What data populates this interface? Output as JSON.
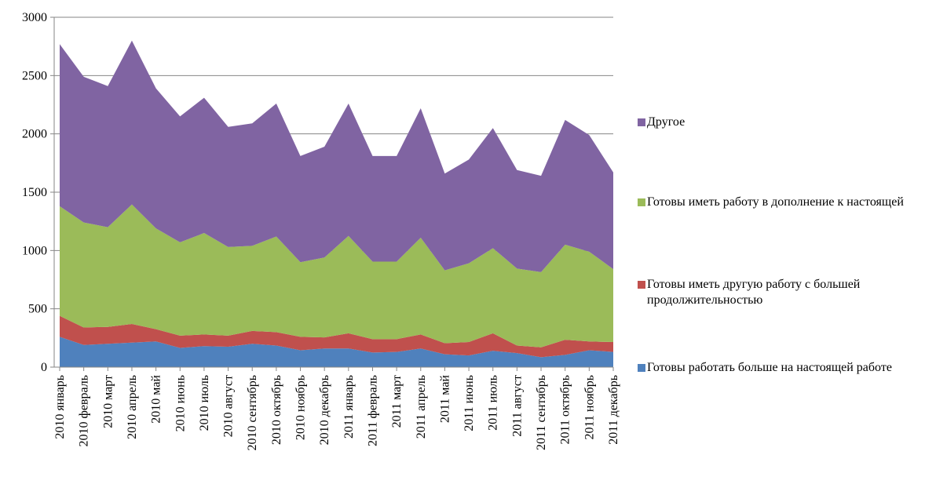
{
  "chart_data": {
    "type": "area_stacked",
    "categories": [
      "2010 январь",
      "2010 февраль",
      "2010 март",
      "2010 апрель",
      "2010 май",
      "2010 июнь",
      "2010 июль",
      "2010 август",
      "2010 сентябрь",
      "2010 октябрь",
      "2010 ноябрь",
      "2010 декабрь",
      "2011 январь",
      "2011 февраль",
      "2011 март",
      "2011 апрель",
      "2011 май",
      "2011 июнь",
      "2011 июль",
      "2011 август",
      "2011 сентябрь",
      "2011 октябрь",
      "2011 ноябрь",
      "2011 декабрь"
    ],
    "series": [
      {
        "name": "Готовы работать больше на настоящей работе",
        "color": "#4f81bd",
        "values": [
          260,
          190,
          200,
          210,
          220,
          165,
          180,
          175,
          200,
          185,
          145,
          160,
          160,
          125,
          130,
          160,
          110,
          100,
          140,
          120,
          85,
          105,
          145,
          130
        ]
      },
      {
        "name": "Готовы иметь другую работу с большей продолжительностью",
        "color": "#c0504d",
        "values": [
          180,
          150,
          145,
          160,
          105,
          105,
          100,
          95,
          110,
          115,
          115,
          95,
          130,
          115,
          110,
          120,
          95,
          115,
          150,
          65,
          85,
          130,
          75,
          85
        ]
      },
      {
        "name": "Готовы иметь работу в дополнение к настоящей",
        "color": "#9bbb59",
        "values": [
          940,
          900,
          855,
          1025,
          865,
          800,
          870,
          760,
          730,
          820,
          640,
          685,
          835,
          665,
          665,
          830,
          625,
          675,
          730,
          660,
          645,
          815,
          770,
          625
        ]
      },
      {
        "name": "Другое",
        "color": "#8064a2",
        "values": [
          1390,
          1250,
          1210,
          1405,
          1200,
          1080,
          1160,
          1030,
          1050,
          1140,
          910,
          950,
          1135,
          905,
          905,
          1110,
          830,
          890,
          1030,
          845,
          825,
          1070,
          1000,
          830
        ]
      }
    ],
    "ylim": [
      0,
      3000
    ],
    "yticks": [
      0,
      500,
      1000,
      1500,
      2000,
      2500,
      3000
    ],
    "grid": true,
    "legend": "right"
  }
}
